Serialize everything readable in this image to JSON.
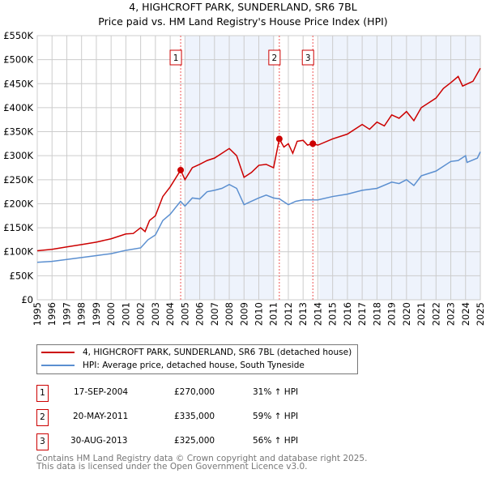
{
  "chart_data": {
    "type": "line",
    "title": "4, HIGHCROFT PARK, SUNDERLAND, SR6 7BL",
    "subtitle": "Price paid vs. HM Land Registry's House Price Index (HPI)",
    "xlim": [
      1995,
      2025
    ],
    "ylim": [
      0,
      550000
    ],
    "yticks": [
      0,
      50000,
      100000,
      150000,
      200000,
      250000,
      300000,
      350000,
      400000,
      450000,
      500000,
      550000
    ],
    "ytick_labels": [
      "£0",
      "£50K",
      "£100K",
      "£150K",
      "£200K",
      "£250K",
      "£300K",
      "£350K",
      "£400K",
      "£450K",
      "£500K",
      "£550K"
    ],
    "xticks": [
      "1995",
      "1996",
      "1997",
      "1998",
      "1999",
      "2000",
      "2001",
      "2002",
      "2003",
      "2004",
      "2005",
      "2006",
      "2007",
      "2008",
      "2009",
      "2010",
      "2011",
      "2012",
      "2013",
      "2014",
      "2015",
      "2016",
      "2017",
      "2018",
      "2019",
      "2020",
      "2021",
      "2022",
      "2023",
      "2024",
      "2025"
    ],
    "grid": true,
    "shaded_ranges": [
      [
        2005.0,
        2011.05
      ],
      [
        2014.1,
        2025
      ]
    ],
    "series": [
      {
        "name": "4, HIGHCROFT PARK, SUNDERLAND, SR6 7BL (detached house)",
        "color": "#cc0000",
        "x": [
          1995,
          1996,
          1997,
          1998,
          1999,
          2000,
          2001,
          2001.5,
          2002,
          2002.3,
          2002.6,
          2003,
          2003.5,
          2004,
          2004.71,
          2005,
          2005.5,
          2006,
          2006.5,
          2007,
          2007.5,
          2008,
          2008.5,
          2009,
          2009.5,
          2010,
          2010.5,
          2011,
          2011.39,
          2011.7,
          2012,
          2012.3,
          2012.6,
          2013,
          2013.3,
          2013.66,
          2014,
          2015,
          2016,
          2017,
          2017.5,
          2018,
          2018.5,
          2019,
          2019.5,
          2020,
          2020.5,
          2021,
          2022,
          2022.5,
          2023,
          2023.5,
          2023.8,
          2024.5,
          2025
        ],
        "y": [
          102000,
          105000,
          110000,
          115000,
          120000,
          127000,
          137000,
          138000,
          150000,
          142000,
          165000,
          175000,
          215000,
          235000,
          270000,
          250000,
          275000,
          282000,
          290000,
          295000,
          305000,
          315000,
          300000,
          255000,
          265000,
          280000,
          282000,
          275000,
          335000,
          318000,
          325000,
          305000,
          330000,
          332000,
          322000,
          325000,
          322000,
          335000,
          345000,
          365000,
          355000,
          370000,
          362000,
          385000,
          378000,
          392000,
          373000,
          400000,
          420000,
          440000,
          452000,
          465000,
          445000,
          455000,
          482000
        ]
      },
      {
        "name": "HPI: Average price, detached house, South Tyneside",
        "color": "#5b8fd0",
        "x": [
          1995,
          1996,
          1997,
          1998,
          1999,
          2000,
          2001,
          2002,
          2002.5,
          2003,
          2003.5,
          2004,
          2004.7,
          2005,
          2005.5,
          2006,
          2006.5,
          2007,
          2007.5,
          2008,
          2008.5,
          2009,
          2009.5,
          2010,
          2010.5,
          2011,
          2011.4,
          2012,
          2012.5,
          2013,
          2013.7,
          2014,
          2015,
          2016,
          2017,
          2018,
          2019,
          2019.5,
          2020,
          2020.5,
          2021,
          2022,
          2023,
          2023.5,
          2024,
          2024.1,
          2024.8,
          2025
        ],
        "y": [
          78000,
          80000,
          84000,
          88000,
          92000,
          96000,
          103000,
          108000,
          125000,
          135000,
          165000,
          178000,
          205000,
          195000,
          212000,
          210000,
          225000,
          228000,
          232000,
          240000,
          232000,
          198000,
          205000,
          212000,
          218000,
          212000,
          210000,
          198000,
          205000,
          208000,
          208000,
          208000,
          215000,
          220000,
          228000,
          232000,
          245000,
          242000,
          250000,
          238000,
          258000,
          268000,
          288000,
          290000,
          300000,
          286000,
          295000,
          308000
        ]
      }
    ],
    "sales": [
      {
        "label": "1",
        "x": 2004.71,
        "y": 270000,
        "date": "17-SEP-2004",
        "price": "£270,000",
        "hpi": "31% ↑ HPI"
      },
      {
        "label": "2",
        "x": 2011.39,
        "y": 335000,
        "date": "20-MAY-2011",
        "price": "£335,000",
        "hpi": "59% ↑ HPI"
      },
      {
        "label": "3",
        "x": 2013.66,
        "y": 325000,
        "date": "30-AUG-2013",
        "price": "£325,000",
        "hpi": "56% ↑ HPI"
      }
    ]
  },
  "footer": [
    "Contains HM Land Registry data © Crown copyright and database right 2025.",
    "This data is licensed under the Open Government Licence v3.0."
  ]
}
